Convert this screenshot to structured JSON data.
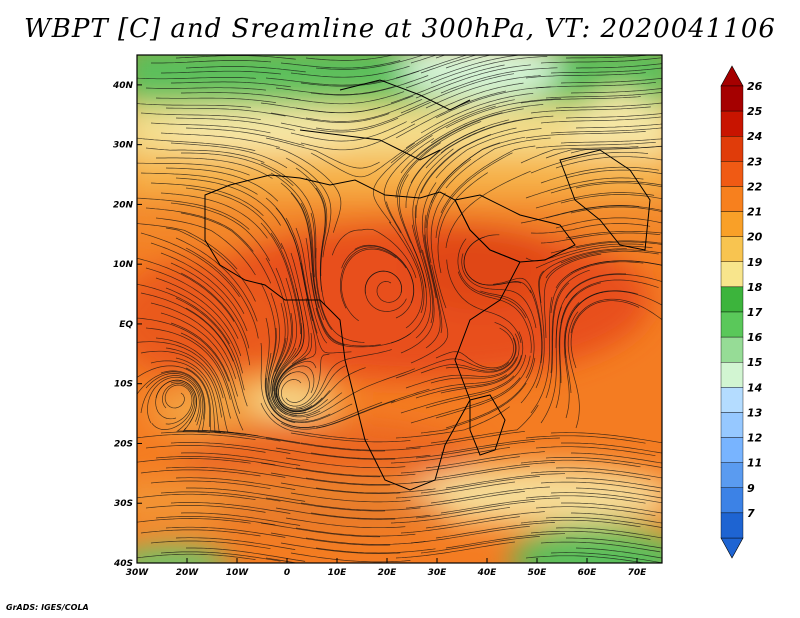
{
  "map": {
    "title": "WBPT [C] and Sreamline at 300hPa, VT: 2020041106",
    "credit": "GrADS: IGES/COLA",
    "variable": "Wet-bulb potential temperature",
    "units": "C",
    "level": "300hPa",
    "valid_time": "2020041106",
    "lon_range": [
      -30,
      75
    ],
    "lat_range": [
      -40,
      45
    ],
    "lon_labels": [
      "30W",
      "20W",
      "10W",
      "0",
      "10E",
      "20E",
      "30E",
      "40E",
      "50E",
      "60E",
      "70E"
    ],
    "lon_values": [
      -30,
      -20,
      -10,
      0,
      10,
      20,
      30,
      40,
      50,
      60,
      70
    ],
    "lat_labels": [
      "40N",
      "30N",
      "20N",
      "10N",
      "EQ",
      "10S",
      "20S",
      "30S",
      "40S"
    ],
    "lat_values": [
      40,
      30,
      20,
      10,
      0,
      -10,
      -20,
      -30,
      -40
    ]
  },
  "colorbar": {
    "labels": [
      "26",
      "25",
      "24",
      "23",
      "22",
      "21",
      "20",
      "19",
      "18",
      "17",
      "16",
      "15",
      "14",
      "13",
      "12",
      "11",
      "9",
      "7"
    ],
    "colors": [
      "#a50000",
      "#c81400",
      "#e03c0a",
      "#f05a14",
      "#f7801e",
      "#f9a028",
      "#f8c450",
      "#f8e58c",
      "#3cb43c",
      "#5ac85a",
      "#96dc96",
      "#d2f5d2",
      "#b4dcff",
      "#96c8ff",
      "#78b4ff",
      "#5a9bf0",
      "#3c82e6",
      "#1e64d2"
    ]
  }
}
